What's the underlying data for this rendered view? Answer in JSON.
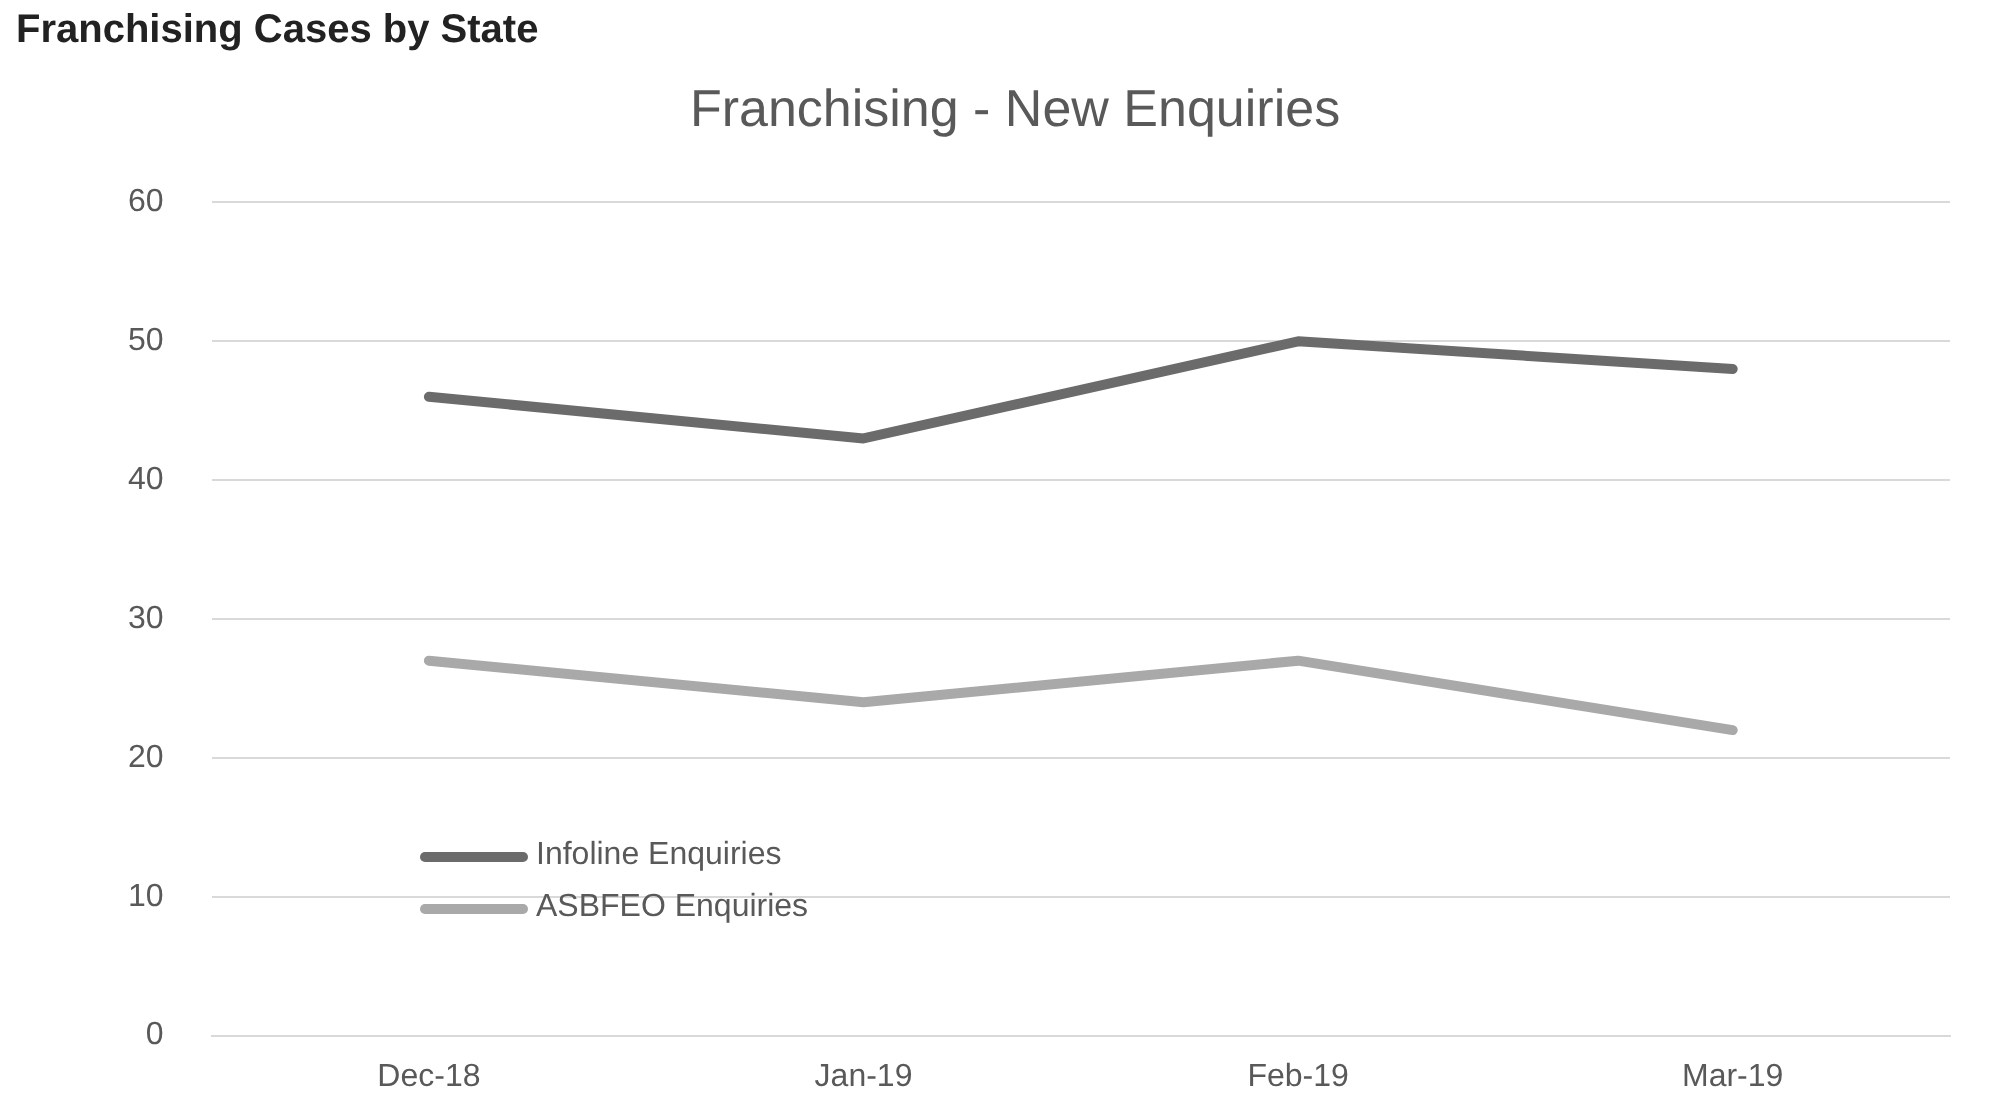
{
  "chart_data": {
    "type": "line",
    "title": "Franchising - New Enquiries",
    "categories": [
      "Dec-18",
      "Jan-19",
      "Feb-19",
      "Mar-19"
    ],
    "series": [
      {
        "name": "Infoline Enquiries",
        "color": "#6b6b6b",
        "values": [
          46,
          43,
          50,
          48
        ]
      },
      {
        "name": "ASBFEO Enquiries",
        "color": "#a9a9a9",
        "values": [
          27,
          24,
          27,
          22
        ]
      }
    ],
    "ylim": [
      0,
      60
    ],
    "yticks": [
      0,
      10,
      20,
      30,
      40,
      50,
      60
    ],
    "grid": "y",
    "legend": "bottom left",
    "marker": "none",
    "line_style": "solid",
    "annotations": [
      "Franchising Cases by State"
    ]
  }
}
